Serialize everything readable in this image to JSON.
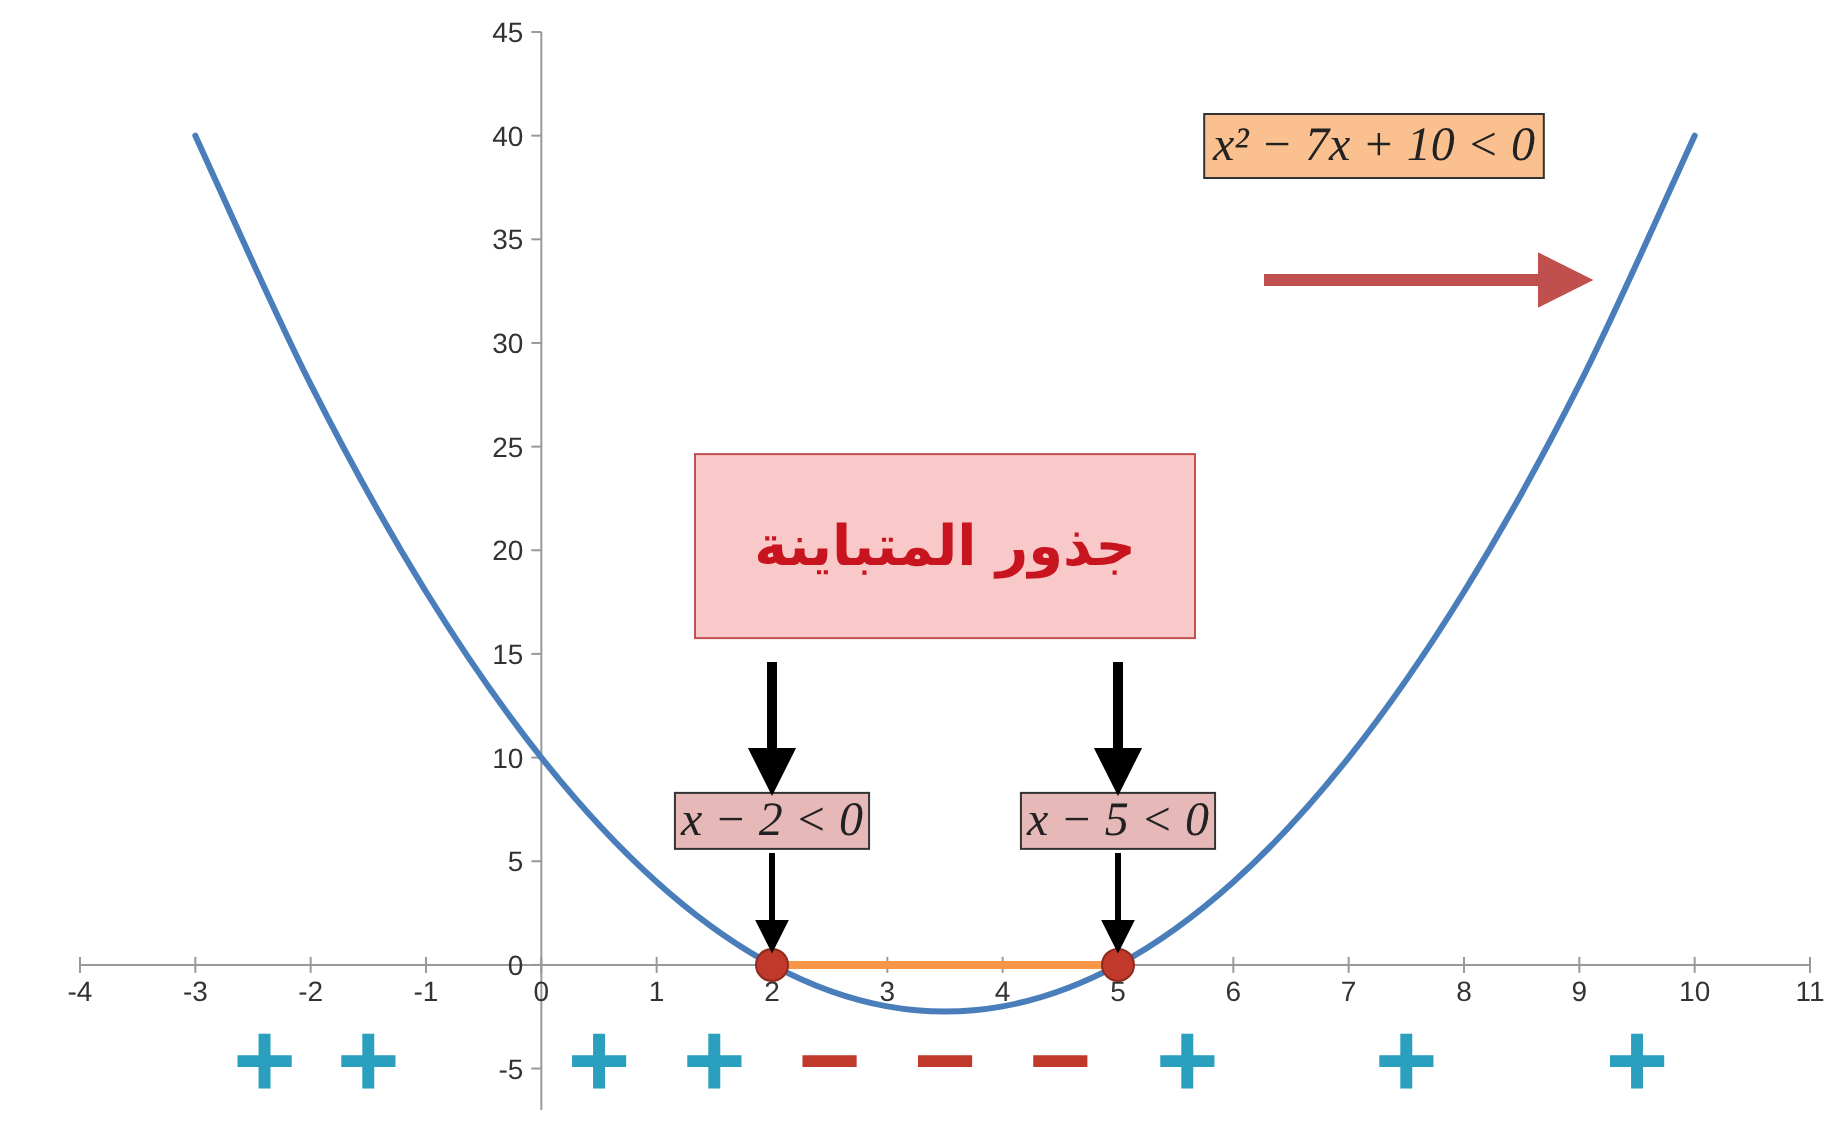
{
  "chart_data": {
    "type": "line",
    "xlim": [
      -4,
      11
    ],
    "ylim": [
      -7,
      45
    ],
    "xticks": [
      -4,
      -3,
      -2,
      -1,
      0,
      1,
      2,
      3,
      4,
      5,
      6,
      7,
      8,
      9,
      10,
      11
    ],
    "yticks": [
      -5,
      0,
      5,
      10,
      15,
      20,
      25,
      30,
      35,
      40,
      45
    ],
    "series": [
      {
        "color": "#4a7ebb",
        "marker": "none",
        "x": [
          -3,
          -2,
          -1,
          0,
          1,
          2,
          3,
          4,
          5,
          6,
          7,
          8,
          9,
          10
        ],
        "values": [
          40,
          28,
          18,
          10,
          4,
          0,
          -2,
          -2,
          0,
          4,
          10,
          18,
          28,
          40
        ]
      },
      {
        "type": "line",
        "color": "#f79646",
        "marker": "none",
        "x": [
          2,
          5
        ],
        "values": [
          0,
          0
        ]
      },
      {
        "type": "scatter",
        "color": "#c0392b",
        "marker": "circle",
        "x": [
          2,
          5
        ],
        "values": [
          0,
          0
        ]
      }
    ],
    "annotations": [
      "x² − 7x + 10 < 0",
      "جذور المتباينة",
      {
        "text": "x − 2 < 0",
        "x": 2,
        "y": 0
      },
      {
        "text": "x − 5 < 0",
        "x": 5,
        "y": 0
      },
      "+",
      "+",
      "+",
      "+",
      "−",
      "−",
      "−",
      "+",
      "+",
      "+"
    ],
    "grid": false
  }
}
